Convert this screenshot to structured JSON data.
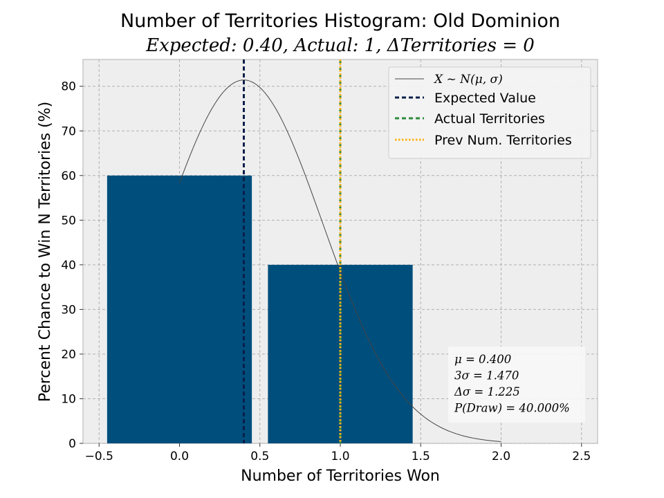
{
  "chart_data": {
    "type": "bar",
    "title": "Number of Territories Histogram: Old Dominion",
    "subtitle": "Expected: 0.40, Actual: 1, ΔTerritories = 0",
    "xlabel": "Number of Territories Won",
    "ylabel": "Percent Chance to Win N Territories (%)",
    "xlim": [
      -0.6,
      2.6
    ],
    "ylim": [
      0,
      86
    ],
    "x_ticks": [
      "−0.5",
      "0.0",
      "0.5",
      "1.0",
      "1.5",
      "2.0",
      "2.5"
    ],
    "y_ticks": [
      "0",
      "10",
      "20",
      "30",
      "40",
      "50",
      "60",
      "70",
      "80"
    ],
    "grid": true,
    "legend_position": "top-right",
    "bar_color": "#004e7c",
    "bars": [
      {
        "x": 0,
        "value": 60
      },
      {
        "x": 1,
        "value": 40
      }
    ],
    "normal_curve": {
      "label": "X ~ N(μ, σ)",
      "mu": 0.4,
      "sigma": 0.49,
      "peak": 81.4,
      "x_range": [
        0,
        2
      ],
      "color": "#444444"
    },
    "vlines": [
      {
        "label": "Expected Value",
        "x": 0.4,
        "color": "#0b1f4a",
        "style": "dashed"
      },
      {
        "label": "Actual Territories",
        "x": 1.0,
        "color": "#2e8b3e",
        "style": "dashed"
      },
      {
        "label": "Prev Num. Territories",
        "x": 1.0,
        "color": "#ffb31a",
        "style": "dotted"
      }
    ],
    "stats_box": [
      "μ = 0.400",
      "3σ = 1.470",
      "Δσ = 1.225",
      "P(Draw) = 40.000%"
    ]
  }
}
